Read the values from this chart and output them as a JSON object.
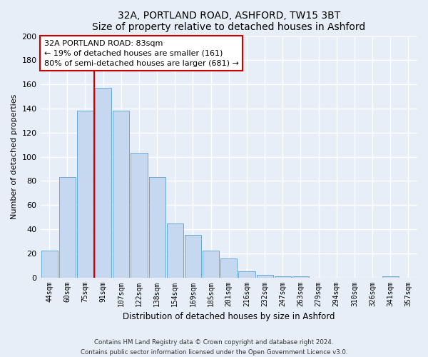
{
  "title": "32A, PORTLAND ROAD, ASHFORD, TW15 3BT",
  "subtitle": "Size of property relative to detached houses in Ashford",
  "xlabel": "Distribution of detached houses by size in Ashford",
  "ylabel": "Number of detached properties",
  "bar_labels": [
    "44sqm",
    "60sqm",
    "75sqm",
    "91sqm",
    "107sqm",
    "122sqm",
    "138sqm",
    "154sqm",
    "169sqm",
    "185sqm",
    "201sqm",
    "216sqm",
    "232sqm",
    "247sqm",
    "263sqm",
    "279sqm",
    "294sqm",
    "310sqm",
    "326sqm",
    "341sqm",
    "357sqm"
  ],
  "bar_values": [
    22,
    83,
    138,
    157,
    138,
    103,
    83,
    45,
    35,
    22,
    16,
    5,
    2,
    1,
    1,
    0,
    0,
    0,
    0,
    1,
    0
  ],
  "bar_color": "#c5d8f0",
  "bar_edge_color": "#6aaad4",
  "property_label": "32A PORTLAND ROAD: 83sqm",
  "annotation_line1": "← 19% of detached houses are smaller (161)",
  "annotation_line2": "80% of semi-detached houses are larger (681) →",
  "vline_color": "#cc0000",
  "vline_x": 2.5,
  "annotation_box_edge": "#cc0000",
  "ylim": [
    0,
    200
  ],
  "yticks": [
    0,
    20,
    40,
    60,
    80,
    100,
    120,
    140,
    160,
    180,
    200
  ],
  "footer_line1": "Contains HM Land Registry data © Crown copyright and database right 2024.",
  "footer_line2": "Contains public sector information licensed under the Open Government Licence v3.0.",
  "bg_color": "#e8eef8",
  "plot_bg_color": "#e8eef8",
  "grid_color": "#ffffff"
}
